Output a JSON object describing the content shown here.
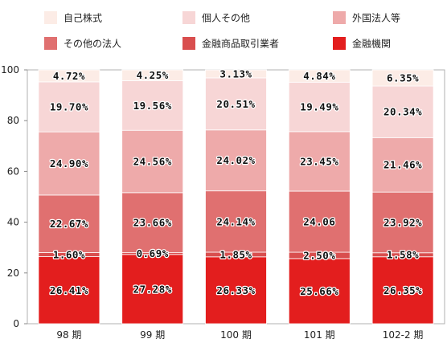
{
  "chart_data": {
    "type": "bar",
    "stacked": true,
    "categories": [
      "98 期",
      "99 期",
      "100 期",
      "101 期",
      "102-2 期"
    ],
    "ylim": [
      0,
      100
    ],
    "yticks": [
      "0",
      "20",
      "40",
      "60",
      "80",
      "100"
    ],
    "legend_position": "top",
    "series": [
      {
        "name": "金融機関",
        "color": "#e31e1e",
        "values": [
          26.41,
          27.28,
          26.33,
          25.66,
          26.35
        ],
        "labels": [
          "26.41%",
          "27.28%",
          "26.33%",
          "25.66%",
          "26.35%"
        ]
      },
      {
        "name": "金融商品取引業者",
        "color": "#d94e4e",
        "values": [
          1.6,
          0.69,
          1.85,
          2.5,
          1.58
        ],
        "labels": [
          "1.60%",
          "0.69%",
          "1.85%",
          "2.50%",
          "1.58%"
        ]
      },
      {
        "name": "その他の法人",
        "color": "#e07070",
        "values": [
          22.67,
          23.66,
          24.14,
          24.06,
          23.92
        ],
        "labels": [
          "22.67%",
          "23.66%",
          "24.14%",
          "24.06",
          "23.92%"
        ]
      },
      {
        "name": "外国法人等",
        "color": "#eeaaaa",
        "values": [
          24.9,
          24.56,
          24.02,
          23.45,
          21.46
        ],
        "labels": [
          "24.90%",
          "24.56%",
          "24.02%",
          "23.45%",
          "21.46%"
        ]
      },
      {
        "name": "個人その他",
        "color": "#f7d6d6",
        "values": [
          19.7,
          19.56,
          20.51,
          19.49,
          20.34
        ],
        "labels": [
          "19.70%",
          "19.56%",
          "20.51%",
          "19.49%",
          "20.34%"
        ]
      },
      {
        "name": "自己株式",
        "color": "#fcece6",
        "values": [
          4.72,
          4.25,
          3.13,
          4.84,
          6.35
        ],
        "labels": [
          "4.72%",
          "4.25%",
          "3.13%",
          "4.84%",
          "6.35%"
        ]
      }
    ],
    "legend_order": [
      "自己株式",
      "個人その他",
      "外国法人等",
      "その他の法人",
      "金融商品取引業者",
      "金融機関"
    ]
  }
}
